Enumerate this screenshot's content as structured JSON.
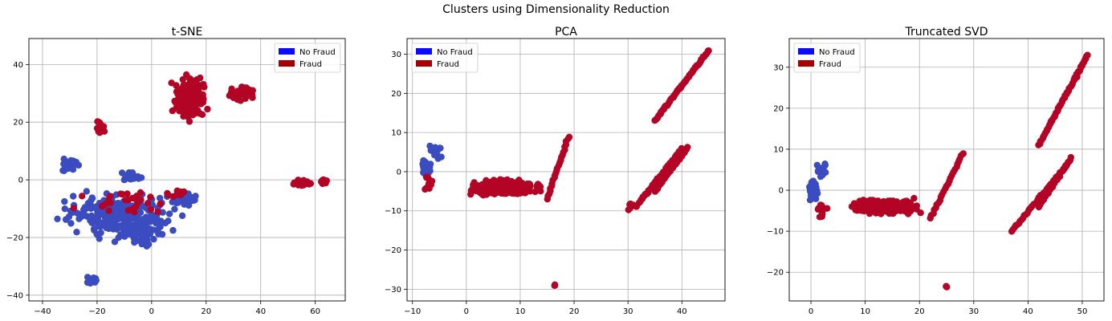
{
  "suptitle": "Clusters using Dimensionality Reduction",
  "colors": {
    "no_fraud_point": "#3b4cc0",
    "fraud_point": "#b40426",
    "legend_no_fraud": "#0a0aff",
    "legend_fraud": "#a80000",
    "grid": "#b0b0b0"
  },
  "legend": {
    "no_fraud": "No Fraud",
    "fraud": "Fraud"
  },
  "chart_data": [
    {
      "type": "scatter",
      "title": "t-SNE",
      "xlabel": "",
      "ylabel": "",
      "xlim": [
        -45,
        71
      ],
      "ylim": [
        -42,
        49
      ],
      "xticks": [
        -40,
        -20,
        0,
        20,
        40,
        60
      ],
      "yticks": [
        -40,
        -20,
        0,
        20,
        40
      ],
      "grid": true,
      "legend_position": "top-right",
      "clusters": [
        {
          "cls": "nf",
          "cx": -30,
          "cy": 5,
          "rx": 7,
          "ry": 3,
          "n": 30
        },
        {
          "cls": "nf",
          "cx": -12,
          "cy": -12,
          "rx": 26,
          "ry": 10,
          "n": 260
        },
        {
          "cls": "nf",
          "cx": -5,
          "cy": -18,
          "rx": 8,
          "ry": 6,
          "n": 80
        },
        {
          "cls": "nf",
          "cx": -22,
          "cy": -35,
          "rx": 3,
          "ry": 2,
          "n": 20
        },
        {
          "cls": "nf",
          "cx": 12,
          "cy": -7,
          "rx": 6,
          "ry": 3,
          "n": 30
        },
        {
          "cls": "nf",
          "cx": -8,
          "cy": 1,
          "rx": 6,
          "ry": 2,
          "n": 25
        },
        {
          "cls": "f",
          "cx": -19,
          "cy": 18,
          "rx": 2,
          "ry": 3,
          "n": 20
        },
        {
          "cls": "f",
          "cx": 14,
          "cy": 28,
          "rx": 8,
          "ry": 10,
          "n": 170
        },
        {
          "cls": "f",
          "cx": 33,
          "cy": 30,
          "rx": 6,
          "ry": 3,
          "n": 50
        },
        {
          "cls": "f",
          "cx": 55,
          "cy": -1,
          "rx": 4,
          "ry": 1.5,
          "n": 40
        },
        {
          "cls": "f",
          "cx": 63,
          "cy": -0.5,
          "rx": 2,
          "ry": 1,
          "n": 20
        },
        {
          "cls": "f",
          "cx": -10,
          "cy": -8,
          "rx": 22,
          "ry": 7,
          "n": 30
        },
        {
          "cls": "f",
          "cx": 10,
          "cy": -5,
          "rx": 6,
          "ry": 2,
          "n": 15
        }
      ]
    },
    {
      "type": "scatter",
      "title": "PCA",
      "xlabel": "",
      "ylabel": "",
      "xlim": [
        -11,
        48
      ],
      "ylim": [
        -33,
        34
      ],
      "xticks": [
        -10,
        0,
        10,
        20,
        30,
        40
      ],
      "yticks": [
        -30,
        -20,
        -10,
        0,
        10,
        20,
        30
      ],
      "grid": true,
      "legend_position": "top-left",
      "clusters": [
        {
          "cls": "nf",
          "cx": -7.5,
          "cy": 1,
          "rx": 1,
          "ry": 2.5,
          "n": 60
        },
        {
          "cls": "nf",
          "cx": -5.5,
          "cy": 5,
          "rx": 1.5,
          "ry": 2.5,
          "n": 15
        },
        {
          "cls": "f",
          "cx": -7,
          "cy": -3,
          "rx": 1,
          "ry": 3,
          "n": 20
        },
        {
          "cls": "f",
          "cx": 7,
          "cy": -4,
          "rx": 8,
          "ry": 2.5,
          "n": 280
        },
        {
          "cls": "f",
          "cx": 16.5,
          "cy": -29,
          "rx": 0.3,
          "ry": 0.3,
          "n": 3
        },
        {
          "cls": "f",
          "cx": 31,
          "cy": -9,
          "rx": 2,
          "ry": 1.5,
          "n": 10
        }
      ],
      "lines": [
        {
          "cls": "f",
          "x0": 15,
          "y0": -7,
          "x1": 19,
          "y1": 9,
          "n": 25
        },
        {
          "cls": "f",
          "x0": 35,
          "y0": 13,
          "x1": 45,
          "y1": 31,
          "n": 60
        },
        {
          "cls": "f",
          "x0": 32,
          "y0": -8,
          "x1": 40,
          "y1": 6,
          "n": 40
        },
        {
          "cls": "f",
          "x0": 35,
          "y0": -5,
          "x1": 41,
          "y1": 6,
          "n": 30
        }
      ]
    },
    {
      "type": "scatter",
      "title": "Truncated SVD",
      "xlabel": "",
      "ylabel": "",
      "xlim": [
        -4,
        54
      ],
      "ylim": [
        -27,
        37
      ],
      "xticks": [
        0,
        10,
        20,
        30,
        40,
        50
      ],
      "yticks": [
        -20,
        -10,
        0,
        10,
        20,
        30
      ],
      "grid": true,
      "legend_position": "top-left",
      "clusters": [
        {
          "cls": "nf",
          "cx": 0.5,
          "cy": 0,
          "rx": 1,
          "ry": 3,
          "n": 80
        },
        {
          "cls": "nf",
          "cx": 2,
          "cy": 5,
          "rx": 1.5,
          "ry": 3,
          "n": 15
        },
        {
          "cls": "f",
          "cx": 2,
          "cy": -5,
          "rx": 1.2,
          "ry": 2,
          "n": 15
        },
        {
          "cls": "f",
          "cx": 14,
          "cy": -4,
          "rx": 8,
          "ry": 2.5,
          "n": 280
        },
        {
          "cls": "f",
          "cx": 25,
          "cy": -23.5,
          "rx": 0.3,
          "ry": 0.3,
          "n": 3
        }
      ],
      "lines": [
        {
          "cls": "f",
          "x0": 22,
          "y0": -7,
          "x1": 28,
          "y1": 9,
          "n": 25
        },
        {
          "cls": "f",
          "x0": 42,
          "y0": 11,
          "x1": 51,
          "y1": 33,
          "n": 60
        },
        {
          "cls": "f",
          "x0": 37,
          "y0": -10,
          "x1": 47,
          "y1": 6,
          "n": 40
        },
        {
          "cls": "f",
          "x0": 42,
          "y0": -4,
          "x1": 48,
          "y1": 8,
          "n": 30
        }
      ]
    }
  ]
}
